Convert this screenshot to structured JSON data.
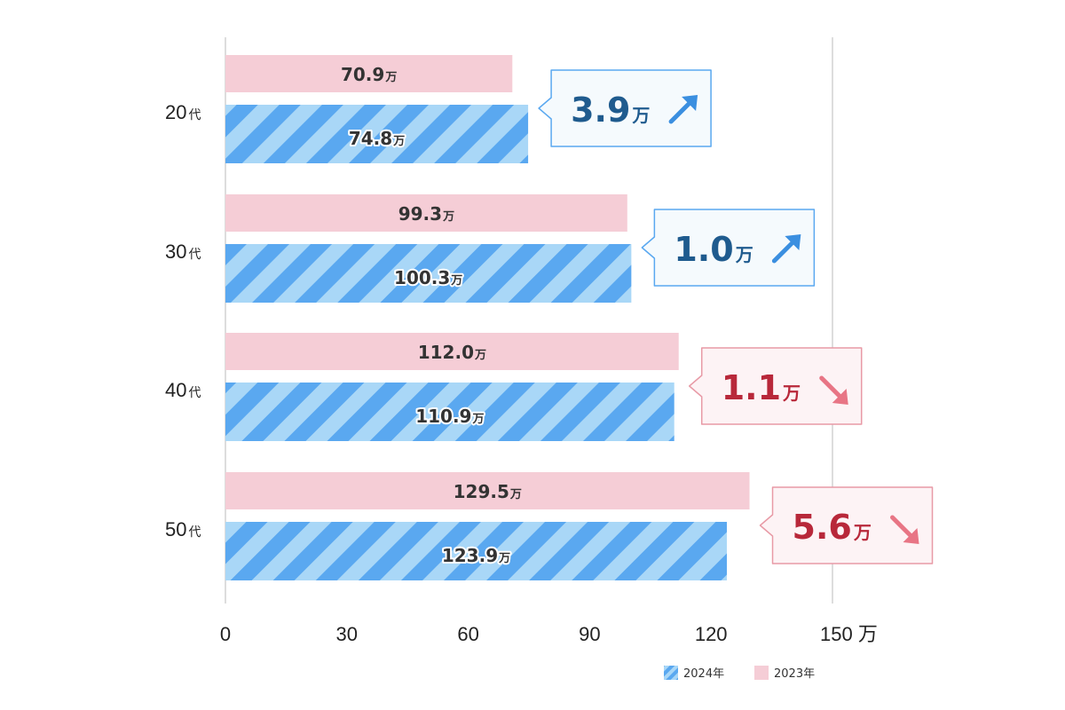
{
  "chart_data": {
    "type": "bar",
    "orientation": "horizontal",
    "categories": [
      "20代",
      "30代",
      "40代",
      "50代"
    ],
    "category_prefixes": [
      "20",
      "30",
      "40",
      "50"
    ],
    "category_suffix": "代",
    "series": [
      {
        "name": "2023年",
        "values": [
          70.9,
          99.3,
          112.0,
          129.5
        ],
        "labels": [
          "70.9",
          "99.3",
          "112.0",
          "129.5"
        ],
        "color": "#f5cdd6",
        "pattern": "solid"
      },
      {
        "name": "2024年",
        "values": [
          74.8,
          100.3,
          110.9,
          123.9
        ],
        "labels": [
          "74.8",
          "100.3",
          "110.9",
          "123.9"
        ],
        "color": "#5aa8f0",
        "pattern": "diagonal-stripes",
        "stripe_color": "#a9d7f7"
      }
    ],
    "value_unit": "万",
    "differences": [
      {
        "value": "3.9",
        "unit": "万",
        "direction": "up",
        "color": "#1f5b8e",
        "arrow_color": "#3b8fe0",
        "border": "#5aa8f0",
        "background": "#f5fafd"
      },
      {
        "value": "1.0",
        "unit": "万",
        "direction": "up",
        "color": "#1f5b8e",
        "arrow_color": "#3b8fe0",
        "border": "#5aa8f0",
        "background": "#f5fafd"
      },
      {
        "value": "1.1",
        "unit": "万",
        "direction": "down",
        "color": "#b8283a",
        "arrow_color": "#e87585",
        "border": "#e89aa6",
        "background": "#fdf3f5"
      },
      {
        "value": "5.6",
        "unit": "万",
        "direction": "down",
        "color": "#b8283a",
        "arrow_color": "#e87585",
        "border": "#e89aa6",
        "background": "#fdf3f5"
      }
    ],
    "x_ticks": [
      "0",
      "30",
      "60",
      "90",
      "120",
      "150 万"
    ],
    "x_tick_values": [
      0,
      30,
      60,
      90,
      120,
      150
    ],
    "xlim": [
      0,
      150
    ],
    "grid": true,
    "legend": {
      "position": "bottom-right",
      "entries": [
        {
          "label": "2024年",
          "series": "2024年"
        },
        {
          "label": "2023年",
          "series": "2023年"
        }
      ]
    }
  }
}
